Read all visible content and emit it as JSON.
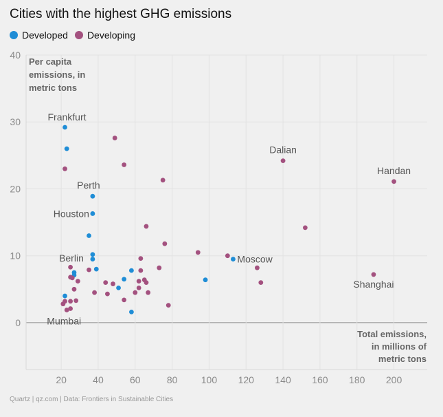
{
  "chart_data": {
    "type": "scatter",
    "title": "Cities with the highest GHG emissions",
    "xlabel": [
      "Total emissions,",
      "in millions of",
      "metric tons"
    ],
    "ylabel": [
      "Per capita",
      "emissions, in",
      "metric tons"
    ],
    "xlim": [
      1,
      218
    ],
    "ylim": [
      -7,
      40
    ],
    "xticks": [
      20,
      40,
      60,
      80,
      100,
      120,
      140,
      160,
      180,
      200
    ],
    "yticks": [
      0,
      10,
      20,
      30,
      40
    ],
    "legend_position": "top-left",
    "series": [
      {
        "name": "Developed",
        "color": "#1f8dd6",
        "points": [
          [
            22,
            29.2
          ],
          [
            23,
            26
          ],
          [
            22,
            4
          ],
          [
            27,
            7.5
          ],
          [
            27,
            7.1
          ],
          [
            35,
            13
          ],
          [
            37,
            18.9
          ],
          [
            37,
            16.3
          ],
          [
            37,
            10.2
          ],
          [
            37,
            9.5
          ],
          [
            39,
            8
          ],
          [
            51,
            5.2
          ],
          [
            54,
            6.5
          ],
          [
            58,
            7.8
          ],
          [
            58,
            1.6
          ],
          [
            98,
            6.4
          ],
          [
            113,
            9.5
          ]
        ]
      },
      {
        "name": "Developing",
        "color": "#a3517f",
        "points": [
          [
            21,
            2.8
          ],
          [
            22,
            23
          ],
          [
            22,
            3.2
          ],
          [
            23,
            1.9
          ],
          [
            25,
            2.1
          ],
          [
            25,
            3.2
          ],
          [
            25,
            8.3
          ],
          [
            25,
            6.8
          ],
          [
            26,
            6.7
          ],
          [
            27,
            5
          ],
          [
            28,
            3.3
          ],
          [
            29,
            6.2
          ],
          [
            35,
            7.9
          ],
          [
            38,
            4.5
          ],
          [
            44,
            6
          ],
          [
            45,
            4.3
          ],
          [
            48,
            5.8
          ],
          [
            49,
            27.6
          ],
          [
            54,
            23.6
          ],
          [
            54,
            3.4
          ],
          [
            60,
            4.5
          ],
          [
            62,
            6.2
          ],
          [
            62,
            5.2
          ],
          [
            63,
            7.8
          ],
          [
            63,
            9.6
          ],
          [
            65,
            6.4
          ],
          [
            66,
            6
          ],
          [
            66,
            14.4
          ],
          [
            67,
            4.5
          ],
          [
            73,
            8.2
          ],
          [
            75,
            21.3
          ],
          [
            76,
            11.8
          ],
          [
            78,
            2.6
          ],
          [
            94,
            10.5
          ],
          [
            110,
            10
          ],
          [
            126,
            8.2
          ],
          [
            128,
            6
          ],
          [
            140,
            24.2
          ],
          [
            152,
            14.2
          ],
          [
            189,
            7.2
          ],
          [
            200,
            21.1
          ]
        ]
      }
    ],
    "annotations": [
      {
        "text": "Frankfurt",
        "x": 22,
        "y": 29.2
      },
      {
        "text": "Perth",
        "x": 37,
        "y": 18.9
      },
      {
        "text": "Houston",
        "x": 37,
        "y": 16.3
      },
      {
        "text": "Berlin",
        "x": 27,
        "y": 7.5
      },
      {
        "text": "Mumbai",
        "x": 23,
        "y": 1.9
      },
      {
        "text": "Dalian",
        "x": 140,
        "y": 24.2
      },
      {
        "text": "Handan",
        "x": 200,
        "y": 21.1
      },
      {
        "text": "Moscow",
        "x": 113,
        "y": 9.5
      },
      {
        "text": "Shanghai",
        "x": 189,
        "y": 7.2
      }
    ]
  },
  "footer": "Quartz | qz.com | Data: Frontiers in Sustainable Cities"
}
